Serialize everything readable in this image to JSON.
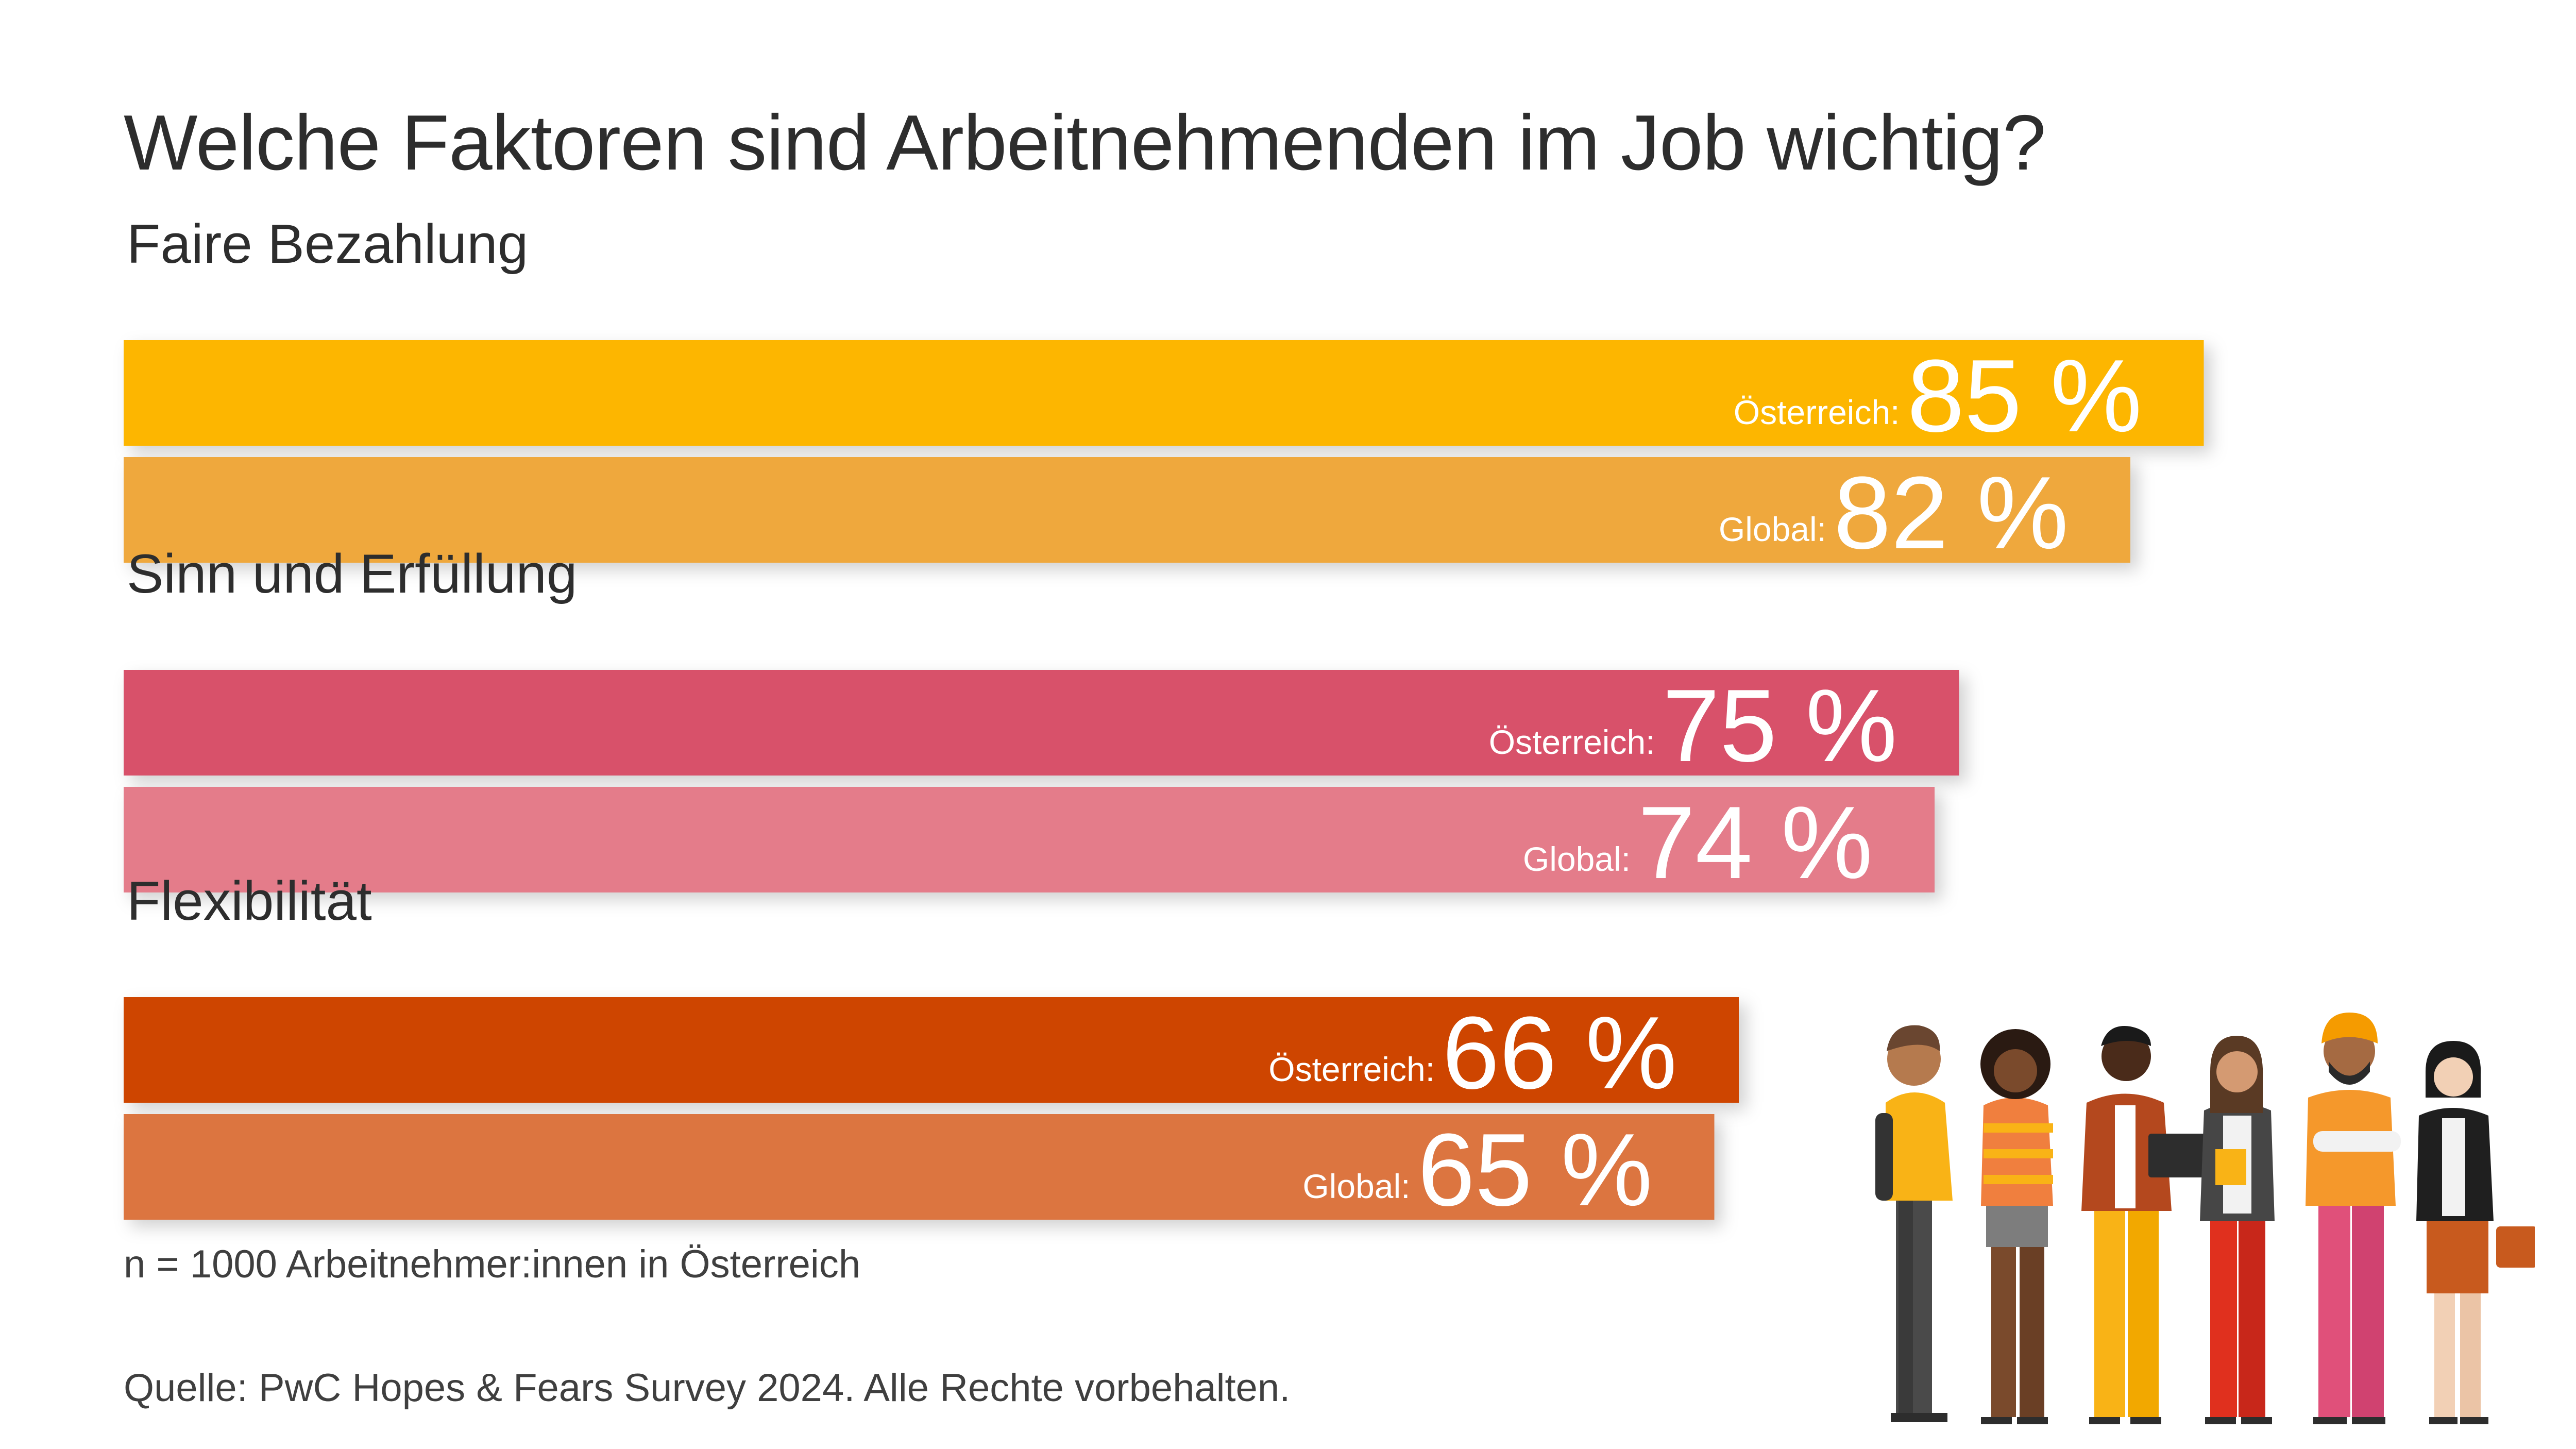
{
  "title": "Welche Faktoren sind Arbeitnehmenden im Job wichtig?",
  "note": "n = 1000 Arbeitnehmer:innen in Österreich",
  "source": "Quelle: PwC Hopes & Fears Survey 2024. Alle Rechte vorbehalten.",
  "illustration": "group-of-diverse-workers-illustration",
  "chart_data": {
    "type": "bar",
    "orientation": "horizontal",
    "title": "Welche Faktoren sind Arbeitnehmenden im Job wichtig?",
    "unit": "%",
    "xlim": [
      0,
      100
    ],
    "grid": false,
    "legend": "none",
    "categories": [
      "Faire Bezahlung",
      "Sinn und Erfüllung",
      "Flexibilität"
    ],
    "series": [
      {
        "name": "Österreich:",
        "values": [
          85,
          75,
          66
        ],
        "value_labels": [
          "85 %",
          "75 %",
          "66 %"
        ],
        "colors": [
          "#FDB600",
          "#D8516A",
          "#CE4500"
        ]
      },
      {
        "name": "Global:",
        "values": [
          82,
          74,
          65
        ],
        "value_labels": [
          "82 %",
          "74 %",
          "65 %"
        ],
        "colors": [
          "#EFA83E",
          "#E47B8A",
          "#DC7541"
        ]
      }
    ]
  }
}
